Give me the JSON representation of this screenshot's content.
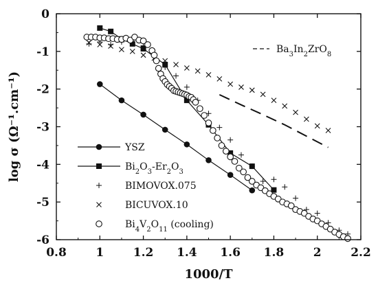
{
  "chart_data": {
    "type": "scatter",
    "xlabel": "1000/T",
    "ylabel": "log σ  (Ω⁻¹.cm⁻¹)",
    "xlim": [
      0.8,
      2.2
    ],
    "ylim": [
      -6,
      0
    ],
    "xticks": [
      "0.8",
      "1",
      "1.2",
      "1.4",
      "1.6",
      "1.8",
      "2",
      "2.2"
    ],
    "yticks": [
      "0",
      "-1",
      "-2",
      "-3",
      "-4",
      "-5",
      "-6"
    ],
    "grid": false,
    "legend_position": "bottom-left",
    "series": [
      {
        "name": "YSZ",
        "marker": "filled-circle",
        "line": "solid",
        "x": [
          1.0,
          1.1,
          1.2,
          1.3,
          1.4,
          1.5,
          1.6,
          1.7
        ],
        "y": [
          -1.87,
          -2.3,
          -2.68,
          -3.08,
          -3.47,
          -3.89,
          -4.28,
          -4.69
        ]
      },
      {
        "name": "Bi2O3-Er2O3",
        "marker": "filled-square",
        "line": "solid",
        "x": [
          1.0,
          1.05,
          1.1,
          1.15,
          1.2,
          1.3,
          1.4,
          1.5,
          1.6,
          1.7,
          1.8
        ],
        "y": [
          -0.38,
          -0.47,
          -0.67,
          -0.8,
          -0.93,
          -1.35,
          -2.3,
          -2.95,
          -3.7,
          -4.05,
          -4.68
        ]
      },
      {
        "name": "BIMOVOX.075",
        "marker": "plus",
        "line": "none",
        "x": [
          0.95,
          1.0,
          1.05,
          1.1,
          1.15,
          1.2,
          1.25,
          1.3,
          1.35,
          1.4,
          1.45,
          1.5,
          1.55,
          1.6,
          1.65,
          1.7,
          1.75,
          1.8,
          1.85,
          1.9,
          1.95,
          2.0,
          2.05,
          2.1,
          2.14
        ],
        "y": [
          -0.8,
          -0.75,
          -0.82,
          -0.75,
          -0.7,
          -0.85,
          -1.1,
          -1.42,
          -1.65,
          -1.95,
          -2.3,
          -2.65,
          -3.02,
          -3.35,
          -3.75,
          -4.05,
          -4.45,
          -4.4,
          -4.6,
          -4.9,
          -5.2,
          -5.3,
          -5.55,
          -5.75,
          -5.85
        ]
      },
      {
        "name": "BICUVOX.10",
        "marker": "x",
        "line": "none",
        "x": [
          0.95,
          1.0,
          1.05,
          1.1,
          1.15,
          1.2,
          1.25,
          1.3,
          1.35,
          1.4,
          1.45,
          1.5,
          1.55,
          1.6,
          1.65,
          1.7,
          1.75,
          1.8,
          1.85,
          1.9,
          1.95,
          2.0,
          2.05
        ],
        "y": [
          -0.77,
          -0.82,
          -0.86,
          -0.95,
          -1.0,
          -1.1,
          -1.18,
          -1.25,
          -1.35,
          -1.44,
          -1.52,
          -1.62,
          -1.73,
          -1.87,
          -1.95,
          -2.03,
          -2.14,
          -2.3,
          -2.45,
          -2.62,
          -2.8,
          -2.98,
          -3.1
        ]
      },
      {
        "name": "Bi4V2O11 (cooling)",
        "marker": "open-circle",
        "line": "none",
        "x": [
          0.94,
          0.96,
          0.98,
          1.0,
          1.02,
          1.04,
          1.06,
          1.08,
          1.1,
          1.12,
          1.14,
          1.16,
          1.18,
          1.2,
          1.22,
          1.24,
          1.25,
          1.26,
          1.27,
          1.28,
          1.29,
          1.3,
          1.31,
          1.32,
          1.33,
          1.34,
          1.35,
          1.36,
          1.37,
          1.38,
          1.39,
          1.4,
          1.41,
          1.42,
          1.43,
          1.44,
          1.46,
          1.48,
          1.5,
          1.52,
          1.54,
          1.56,
          1.58,
          1.6,
          1.62,
          1.64,
          1.66,
          1.68,
          1.7,
          1.72,
          1.74,
          1.76,
          1.78,
          1.8,
          1.82,
          1.84,
          1.86,
          1.88,
          1.9,
          1.92,
          1.94,
          1.96,
          1.98,
          2.0,
          2.02,
          2.04,
          2.06,
          2.08,
          2.1,
          2.12,
          2.14
        ],
        "y": [
          -0.62,
          -0.62,
          -0.62,
          -0.64,
          -0.64,
          -0.66,
          -0.66,
          -0.68,
          -0.68,
          -0.65,
          -0.7,
          -0.62,
          -0.7,
          -0.72,
          -0.82,
          -0.98,
          -1.1,
          -1.25,
          -1.45,
          -1.6,
          -1.72,
          -1.8,
          -1.88,
          -1.93,
          -1.98,
          -2.04,
          -2.06,
          -2.08,
          -2.1,
          -2.12,
          -2.14,
          -2.16,
          -2.2,
          -2.22,
          -2.28,
          -2.35,
          -2.52,
          -2.7,
          -2.9,
          -3.1,
          -3.3,
          -3.5,
          -3.65,
          -3.8,
          -3.92,
          -4.1,
          -4.2,
          -4.35,
          -4.45,
          -4.55,
          -4.62,
          -4.7,
          -4.78,
          -4.85,
          -4.92,
          -5.0,
          -5.05,
          -5.1,
          -5.2,
          -5.25,
          -5.3,
          -5.38,
          -5.45,
          -5.5,
          -5.58,
          -5.65,
          -5.72,
          -5.8,
          -5.86,
          -5.92,
          -5.97
        ]
      },
      {
        "name": "Ba3In2ZrO8",
        "marker": "none",
        "line": "dashed",
        "x": [
          1.55,
          1.65,
          1.75,
          1.85,
          1.95,
          2.05
        ],
        "y": [
          -2.15,
          -2.42,
          -2.68,
          -2.95,
          -3.25,
          -3.55
        ]
      }
    ],
    "legend": [
      {
        "label": "YSZ",
        "marker": "filled-circle",
        "line": "solid"
      },
      {
        "label": "Bi2O3-Er2O3",
        "marker": "filled-square",
        "line": "solid"
      },
      {
        "label": "BIMOVOX.075",
        "marker": "plus",
        "line": "none"
      },
      {
        "label": "BICUVOX.10",
        "marker": "x",
        "line": "none"
      },
      {
        "label": "Bi4V2O11 (cooling)",
        "marker": "open-circle",
        "line": "none"
      }
    ],
    "inset_legend": {
      "label": "Ba3In2ZrO8",
      "line": "dashed"
    }
  }
}
